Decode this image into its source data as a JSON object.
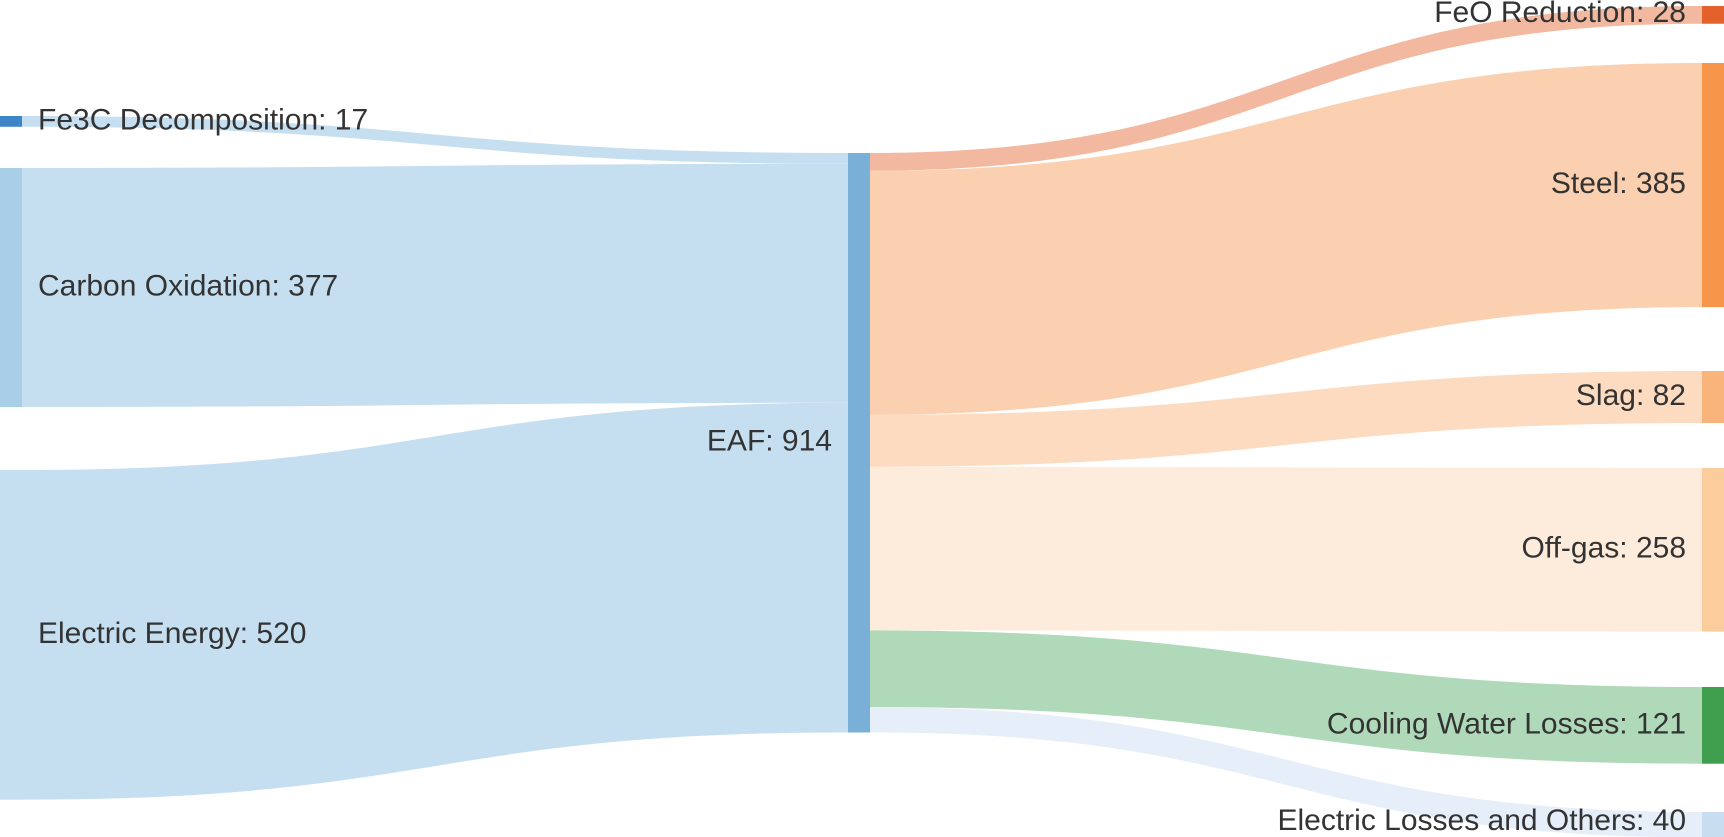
{
  "chart_data": {
    "type": "sankey",
    "unit": "",
    "nodes": [
      {
        "id": "fe3c",
        "label": "Fe3C Decomposition: 17",
        "value": 17,
        "column": 0,
        "color": "#3d85c6"
      },
      {
        "id": "carbon",
        "label": "Carbon Oxidation: 377",
        "value": 377,
        "column": 0,
        "color": "#a9cfe8"
      },
      {
        "id": "electric",
        "label": "Electric Energy: 520",
        "value": 520,
        "column": 0,
        "color": "#c5def0"
      },
      {
        "id": "eaf",
        "label": "EAF: 914",
        "value": 914,
        "column": 1,
        "color": "#7ab0d8"
      },
      {
        "id": "feo",
        "label": "FeO Reduction: 28",
        "value": 28,
        "column": 2,
        "color": "#e3622b"
      },
      {
        "id": "steel",
        "label": "Steel: 385",
        "value": 385,
        "column": 2,
        "color": "#f7954b"
      },
      {
        "id": "slag",
        "label": "Slag: 82",
        "value": 82,
        "column": 2,
        "color": "#f9b47c"
      },
      {
        "id": "offgas",
        "label": "Off-gas: 258",
        "value": 258,
        "column": 2,
        "color": "#fbcd9d"
      },
      {
        "id": "cooling",
        "label": "Cooling Water Losses: 121",
        "value": 121,
        "column": 2,
        "color": "#3f9f4f"
      },
      {
        "id": "elosses",
        "label": "Electric Losses and Others: 40",
        "value": 40,
        "column": 2,
        "color": "#c9ddf1"
      }
    ],
    "links": [
      {
        "source": "fe3c",
        "target": "eaf",
        "value": 17,
        "color": "#c6dff0"
      },
      {
        "source": "carbon",
        "target": "eaf",
        "value": 377,
        "color": "#c6dff0"
      },
      {
        "source": "electric",
        "target": "eaf",
        "value": 520,
        "color": "#c6dff0"
      },
      {
        "source": "eaf",
        "target": "feo",
        "value": 28,
        "color": "#f2b8a0"
      },
      {
        "source": "eaf",
        "target": "steel",
        "value": 385,
        "color": "#fbd0b0"
      },
      {
        "source": "eaf",
        "target": "slag",
        "value": 82,
        "color": "#fcdbc0"
      },
      {
        "source": "eaf",
        "target": "offgas",
        "value": 258,
        "color": "#fdebdb"
      },
      {
        "source": "eaf",
        "target": "cooling",
        "value": 121,
        "color": "#afd9b8"
      },
      {
        "source": "eaf",
        "target": "elosses",
        "value": 40,
        "color": "#e6eff9"
      }
    ]
  }
}
